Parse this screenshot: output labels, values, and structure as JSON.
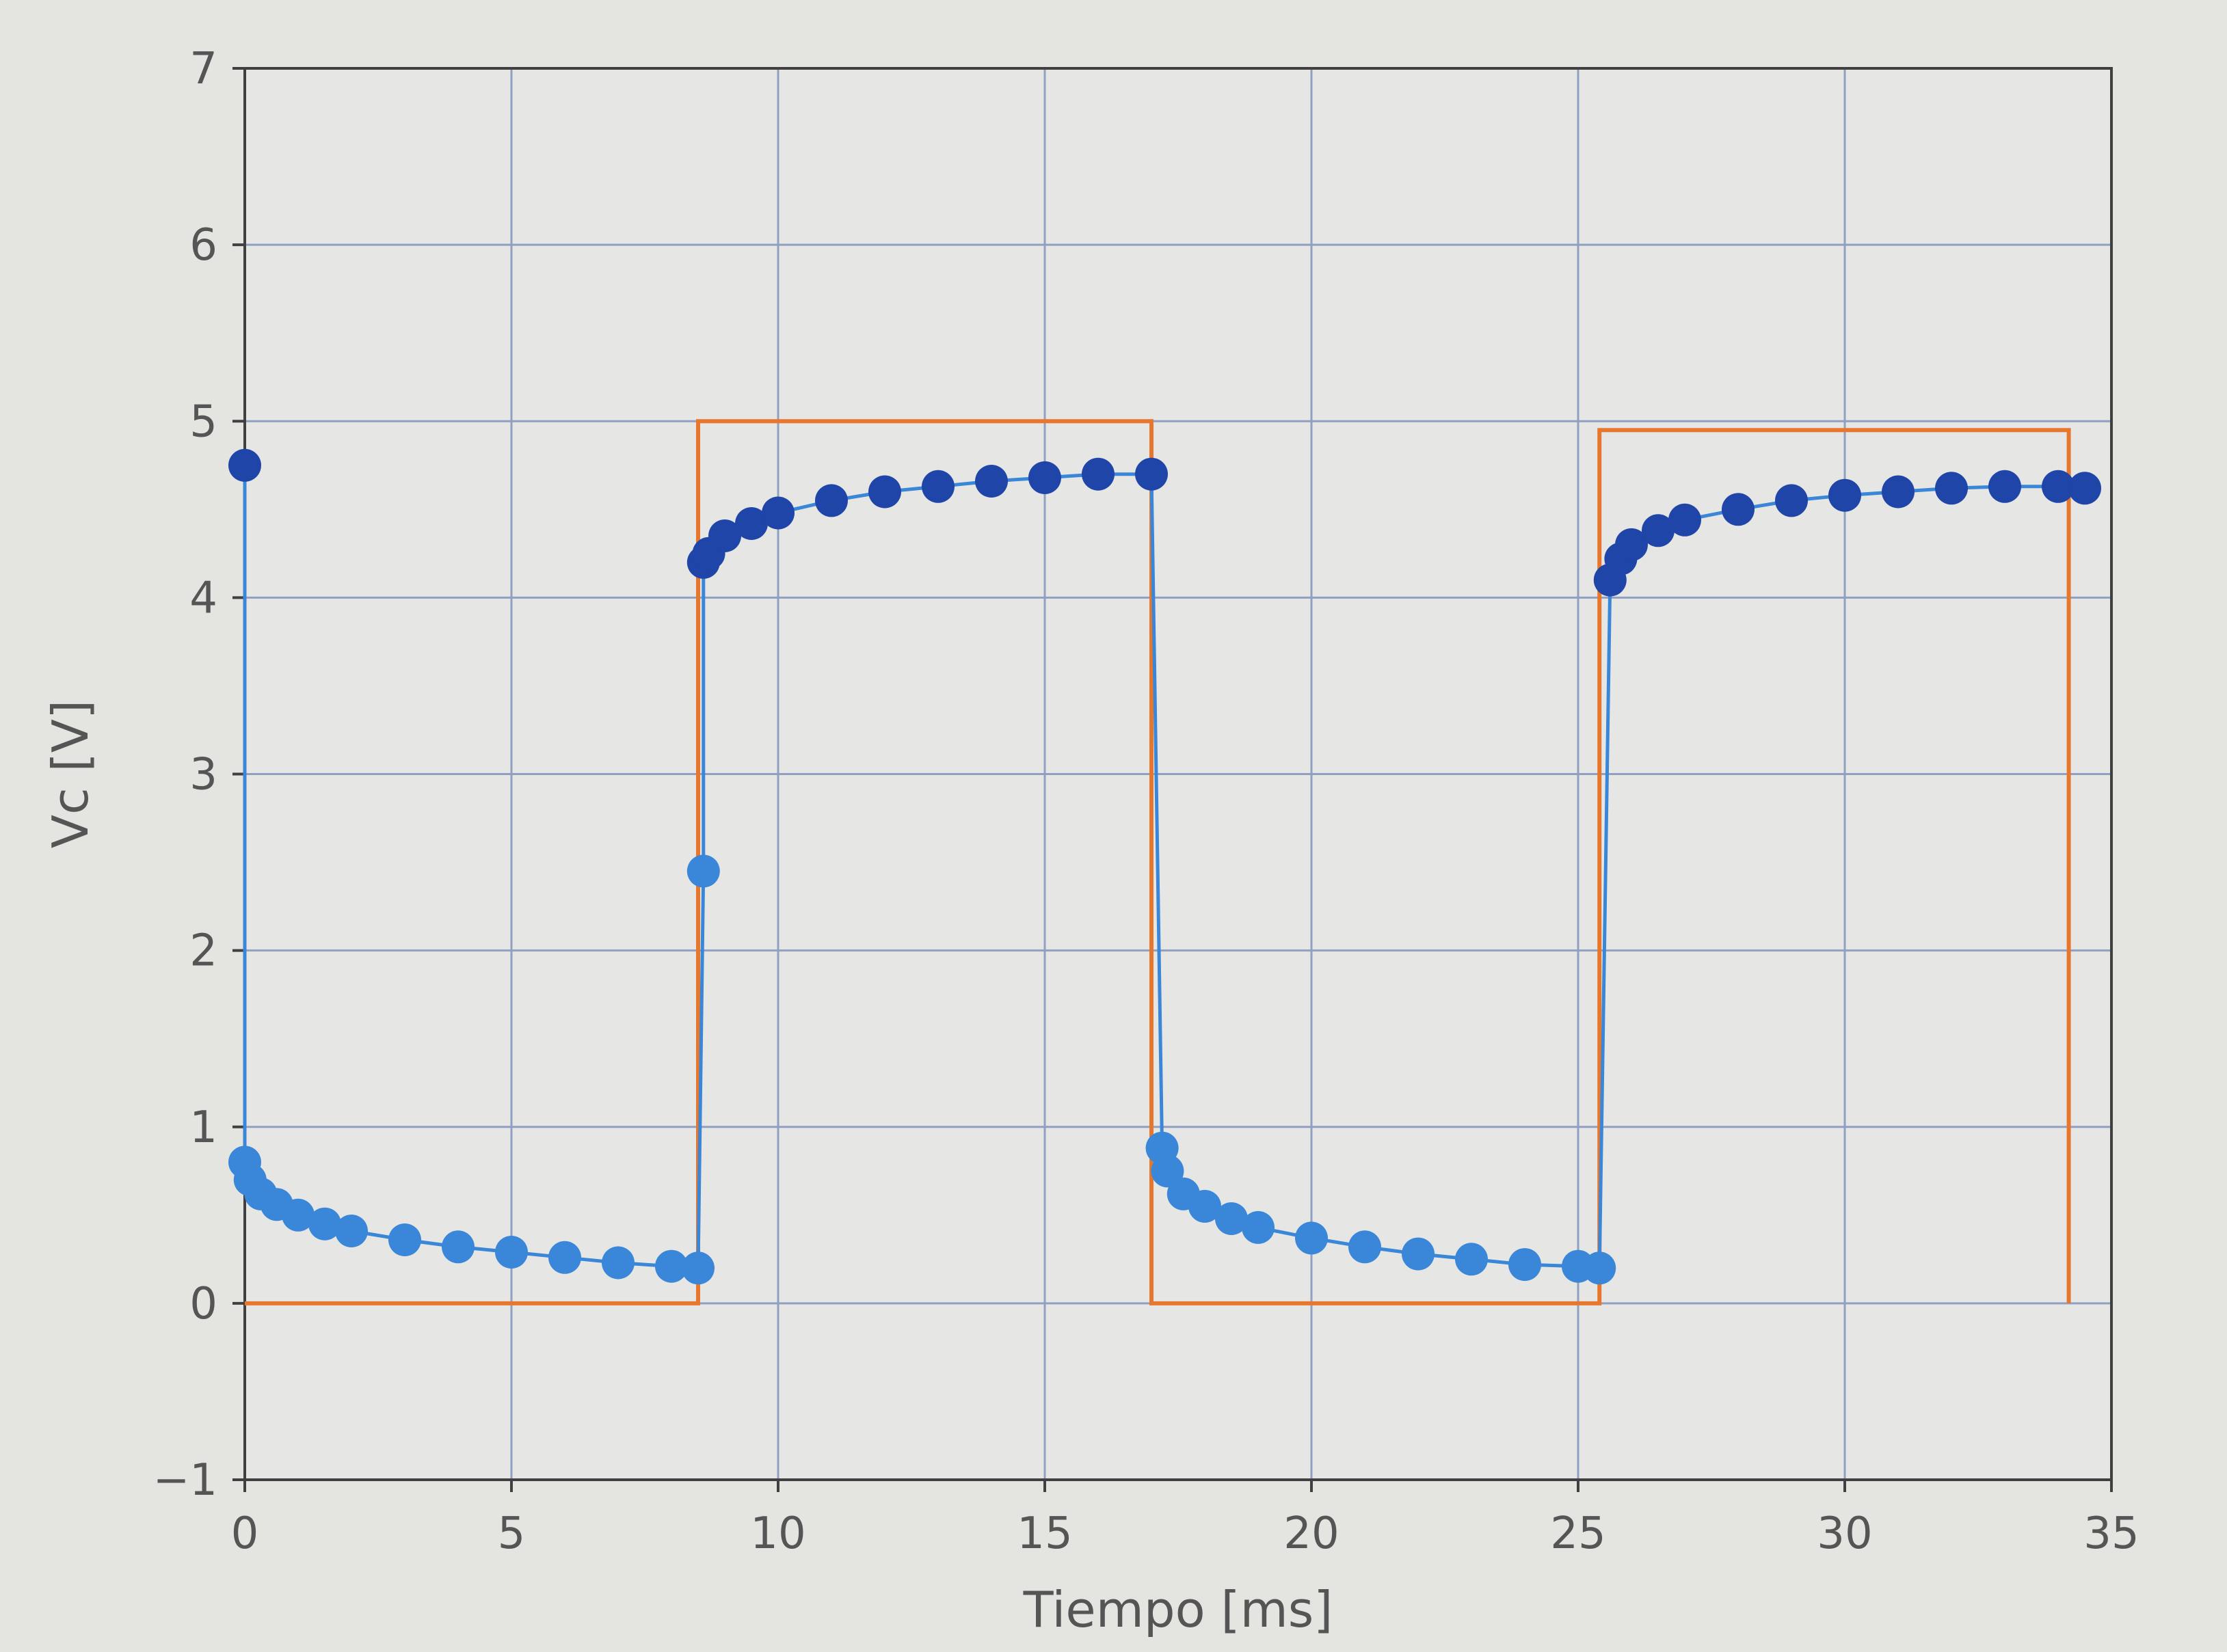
{
  "chart_data": {
    "type": "scatter",
    "title": "",
    "xlabel": "Tiempo [ms]",
    "ylabel": "Vc [V]",
    "xlim": [
      0,
      35
    ],
    "ylim": [
      -1,
      7
    ],
    "x_ticks": [
      0,
      5,
      10,
      15,
      20,
      25,
      30,
      35
    ],
    "y_ticks": [
      -1,
      0,
      1,
      2,
      3,
      4,
      5,
      6,
      7
    ],
    "x_tick_labels": [
      "0",
      "5",
      "10",
      "15",
      "20",
      "25",
      "30",
      "35"
    ],
    "y_tick_labels": [
      "−1",
      "0",
      "1",
      "2",
      "3",
      "4",
      "5",
      "6",
      "7"
    ],
    "grid": true,
    "colors": {
      "plot_background": "#e6e7e4",
      "grid": "#8fa0c2",
      "axis": "#404040",
      "square_wave": "#e8772e",
      "discharge_points": "#3a86d8",
      "charge_points": "#1f45a8"
    },
    "series": [
      {
        "kind": "line",
        "points": [
          [
            0,
            0
          ],
          [
            8.5,
            0
          ],
          [
            8.5,
            5
          ],
          [
            17,
            5
          ],
          [
            17,
            0
          ],
          [
            25.4,
            0
          ],
          [
            25.4,
            4.95
          ],
          [
            34.2,
            4.95
          ],
          [
            34.2,
            0
          ]
        ]
      },
      {
        "kind": "scatter",
        "points": [
          [
            0,
            4.75
          ],
          [
            0,
            0.8
          ],
          [
            0.1,
            0.7
          ],
          [
            0.3,
            0.62
          ],
          [
            0.6,
            0.56
          ],
          [
            1,
            0.5
          ],
          [
            1.5,
            0.45
          ],
          [
            2,
            0.41
          ],
          [
            3,
            0.36
          ],
          [
            4,
            0.32
          ],
          [
            5,
            0.29
          ],
          [
            6,
            0.26
          ],
          [
            7,
            0.23
          ],
          [
            8,
            0.21
          ],
          [
            8.5,
            0.2
          ],
          [
            8.6,
            2.45
          ],
          [
            8.6,
            4.2
          ],
          [
            8.7,
            4.25
          ],
          [
            9,
            4.35
          ],
          [
            9.5,
            4.42
          ],
          [
            10,
            4.48
          ],
          [
            11,
            4.55
          ],
          [
            12,
            4.6
          ],
          [
            13,
            4.63
          ],
          [
            14,
            4.66
          ],
          [
            15,
            4.68
          ],
          [
            16,
            4.7
          ],
          [
            17,
            4.7
          ],
          [
            17.2,
            0.88
          ],
          [
            17.3,
            0.75
          ],
          [
            17.6,
            0.62
          ],
          [
            18,
            0.55
          ],
          [
            18.5,
            0.48
          ],
          [
            19,
            0.43
          ],
          [
            20,
            0.37
          ],
          [
            21,
            0.32
          ],
          [
            22,
            0.28
          ],
          [
            23,
            0.25
          ],
          [
            24,
            0.22
          ],
          [
            25,
            0.21
          ],
          [
            25.4,
            0.2
          ],
          [
            25.6,
            4.1
          ],
          [
            25.8,
            4.22
          ],
          [
            26,
            4.3
          ],
          [
            26.5,
            4.38
          ],
          [
            27,
            4.44
          ],
          [
            28,
            4.5
          ],
          [
            29,
            4.55
          ],
          [
            30,
            4.58
          ],
          [
            31,
            4.6
          ],
          [
            32,
            4.62
          ],
          [
            33,
            4.63
          ],
          [
            34,
            4.63
          ],
          [
            34.5,
            4.62
          ]
        ]
      }
    ]
  }
}
